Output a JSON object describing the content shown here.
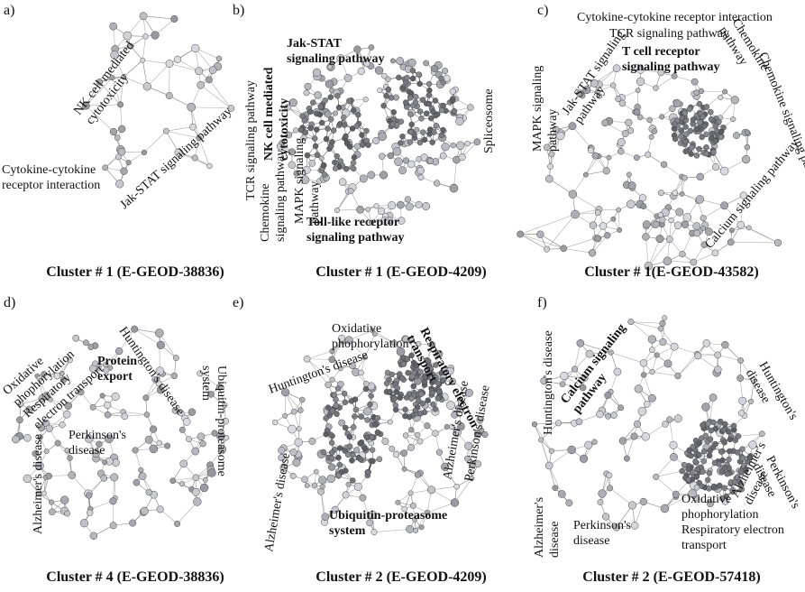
{
  "panels": [
    {
      "letter": "a)",
      "caption": "Cluster # 1 (E-GEOD-38836)",
      "labels": [
        [
          "NK cell mediated",
          "cytotoxicity"
        ],
        [
          "Cytokine-cytokine",
          "receptor interaction"
        ],
        [
          "Jak-STAT signaling pathway"
        ]
      ]
    },
    {
      "letter": "b)",
      "caption": "Cluster # 1 (E-GEOD-4209)",
      "labels": [
        [
          "Jak-STAT",
          "signaling pathway"
        ],
        [
          "NK cell mediated",
          "cytotoxicity"
        ],
        [
          "TCR signaling pathway"
        ],
        [
          "Chemokine",
          "signaling pathway"
        ],
        [
          "MAPK signaling",
          "pathway"
        ],
        [
          "Toll-like receptor",
          "signaling pathway"
        ],
        [
          "Spliceosome"
        ]
      ]
    },
    {
      "letter": "c)",
      "caption": "Cluster # 1(E-GEOD-43582)",
      "labels": [
        [
          "Cytokine-cytokine receptor interaction"
        ],
        [
          "TCR signaling pathway"
        ],
        [
          "T cell receptor",
          "signaling pathway"
        ],
        [
          "Jak-STAT signaling",
          "pathway"
        ],
        [
          "MAPK signaling",
          "pathway"
        ],
        [
          "Chemokine",
          "pathway"
        ],
        [
          "Chemokine signaling pathway"
        ],
        [
          "Calcium signaling pathway"
        ]
      ]
    },
    {
      "letter": "d)",
      "caption": "Cluster # 4 (E-GEOD-38836)",
      "labels": [
        [
          "Oxidative",
          "phophorylation",
          "Respiratory",
          "electron transport"
        ],
        [
          "Protein",
          "export"
        ],
        [
          "Huntington's disease"
        ],
        [
          "Ubiquitin-proteasome",
          "system"
        ],
        [
          "Alzheimer's disease"
        ],
        [
          "Perkinson's",
          "disease"
        ]
      ]
    },
    {
      "letter": "e)",
      "caption": "Cluster # 2 (E-GEOD-4209)",
      "labels": [
        [
          "Oxidative",
          "phophorylation"
        ],
        [
          "Respiratory electron",
          "transport"
        ],
        [
          "Huntington's disease"
        ],
        [
          "Alzheimer's disease"
        ],
        [
          "Alzheimer's disease"
        ],
        [
          "Perkinson's disease"
        ],
        [
          "Ubiquitin-proteasome",
          "system"
        ]
      ]
    },
    {
      "letter": "f)",
      "caption": "Cluster # 2 (E-GEOD-57418)",
      "labels": [
        [
          "Huntington's disease"
        ],
        [
          "Calcium signaling",
          "pathway"
        ],
        [
          "Huntington's",
          "disease"
        ],
        [
          "Alzheimer's",
          "disease"
        ],
        [
          "Perkinson's",
          "disease"
        ],
        [
          "Alzheimer's",
          "disease"
        ],
        [
          "Perkinson's",
          "disease"
        ],
        [
          "Oxidative",
          "phophorylation",
          "Respiratory electron",
          "transport"
        ]
      ]
    }
  ]
}
